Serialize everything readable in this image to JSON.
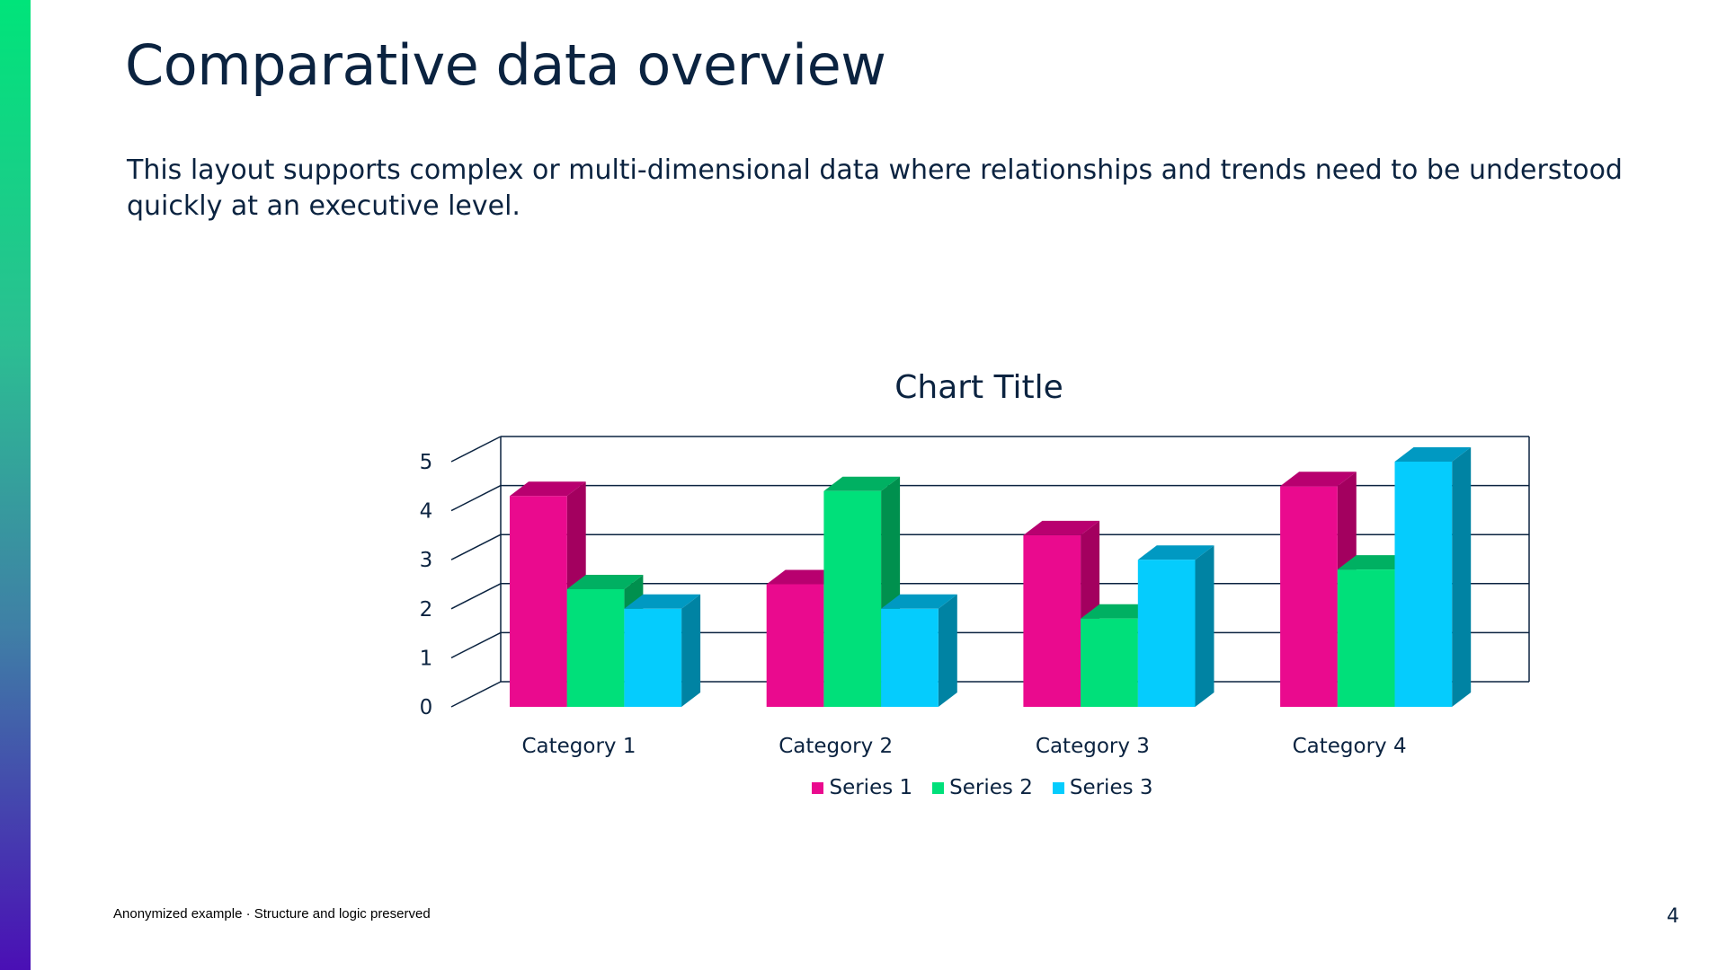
{
  "slide": {
    "title": "Comparative data overview",
    "description": "This layout supports complex or multi-dimensional data where relationships and trends need to be understood quickly at an executive level.",
    "footer": "Anonymized example · Structure and logic preserved",
    "page_number": "4"
  },
  "chart_data": {
    "type": "bar",
    "title": "Chart Title",
    "categories": [
      "Category 1",
      "Category 2",
      "Category 3",
      "Category 4"
    ],
    "series": [
      {
        "name": "Series 1",
        "values": [
          4.3,
          2.5,
          3.5,
          4.5
        ],
        "color": "#ea0a8e",
        "side": "#a3005f",
        "top": "#b8006f"
      },
      {
        "name": "Series 2",
        "values": [
          2.4,
          4.4,
          1.8,
          2.8
        ],
        "color": "#00e07a",
        "side": "#00904e",
        "top": "#00b062"
      },
      {
        "name": "Series 3",
        "values": [
          2,
          2,
          3,
          5
        ],
        "color": "#05ccfd",
        "side": "#0083a3",
        "top": "#0099c2"
      }
    ],
    "yticks": [
      "0",
      "1",
      "2",
      "3",
      "4",
      "5"
    ],
    "ylim": [
      0,
      5
    ],
    "grid": true,
    "legend": "bottom",
    "style": "3d-clustered-column"
  }
}
